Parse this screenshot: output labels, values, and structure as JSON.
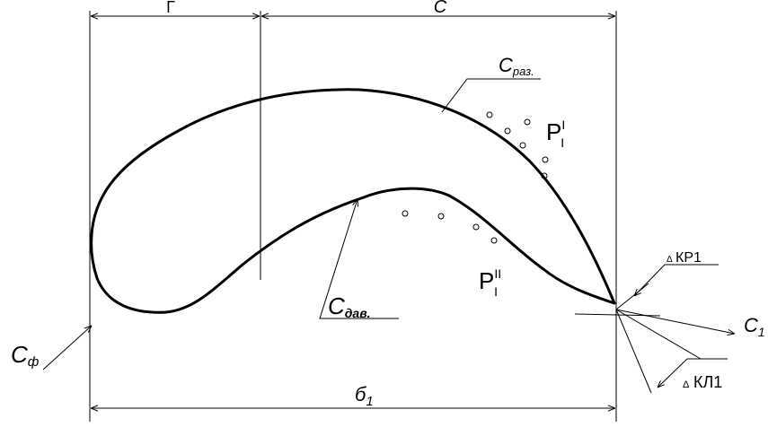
{
  "dimensions": {
    "top_left": "Г",
    "top_right": "С",
    "bottom": {
      "main": "б",
      "sub": "1"
    }
  },
  "labels": {
    "suction": {
      "main": "С",
      "sub": "раз."
    },
    "pressure": {
      "main": "С",
      "sub": "дав."
    },
    "inlet": {
      "main": "С",
      "sub": "ф"
    },
    "outlet": {
      "main": "С",
      "sub": "1"
    },
    "p_suction": {
      "main": "Р",
      "sup": "I",
      "sub": "I"
    },
    "p_pressure": {
      "main": "Р",
      "sup": "II",
      "sub": "I"
    },
    "delta_kr": {
      "delta": "Δ",
      "text": "КР1"
    },
    "delta_kl": {
      "delta": "Δ",
      "text": "КЛ1"
    }
  }
}
